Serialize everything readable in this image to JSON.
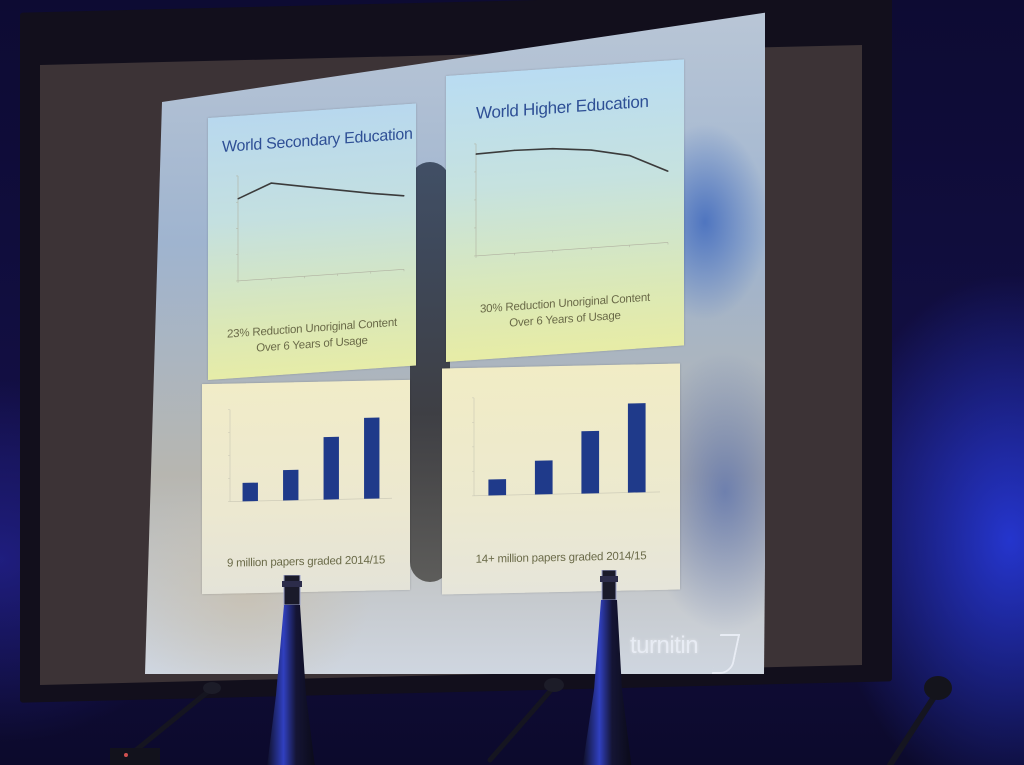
{
  "slide": {
    "logo_text": "turnitin",
    "panels": {
      "top_left": {
        "title": "World Secondary Education",
        "caption_line1": "23% Reduction Unoriginal Content",
        "caption_line2": "Over 6 Years of Usage"
      },
      "top_right": {
        "title": "World Higher Education",
        "caption_line1": "30% Reduction Unoriginal Content",
        "caption_line2": "Over 6 Years of Usage"
      },
      "bottom_left": {
        "caption": "9 million papers graded 2014/15"
      },
      "bottom_right": {
        "caption": "14+ million papers graded 2014/15"
      }
    }
  },
  "chart_data": [
    {
      "type": "line",
      "title": "World Secondary Education",
      "x": [
        1,
        2,
        3,
        4,
        5,
        6
      ],
      "series": [
        {
          "values": [
            86,
            100,
            94,
            88,
            82,
            77
          ]
        }
      ],
      "ylim": [
        0,
        110
      ],
      "color": "#3b3b3b"
    },
    {
      "type": "line",
      "title": "World Higher Education",
      "x": [
        1,
        2,
        3,
        4,
        5,
        6
      ],
      "series": [
        {
          "values": [
            100,
            101,
            100,
            96,
            88,
            70
          ]
        }
      ],
      "ylim": [
        0,
        110
      ],
      "color": "#3b3b3b"
    },
    {
      "type": "bar",
      "categories": [
        "",
        "",
        "",
        ""
      ],
      "values": [
        20,
        33,
        68,
        88
      ],
      "ylim": [
        0,
        100
      ],
      "color": "#1f3a8a"
    },
    {
      "type": "bar",
      "categories": [
        "",
        "",
        "",
        ""
      ],
      "values": [
        18,
        38,
        70,
        100
      ],
      "ylim": [
        0,
        110
      ],
      "color": "#1f3a8a"
    }
  ]
}
